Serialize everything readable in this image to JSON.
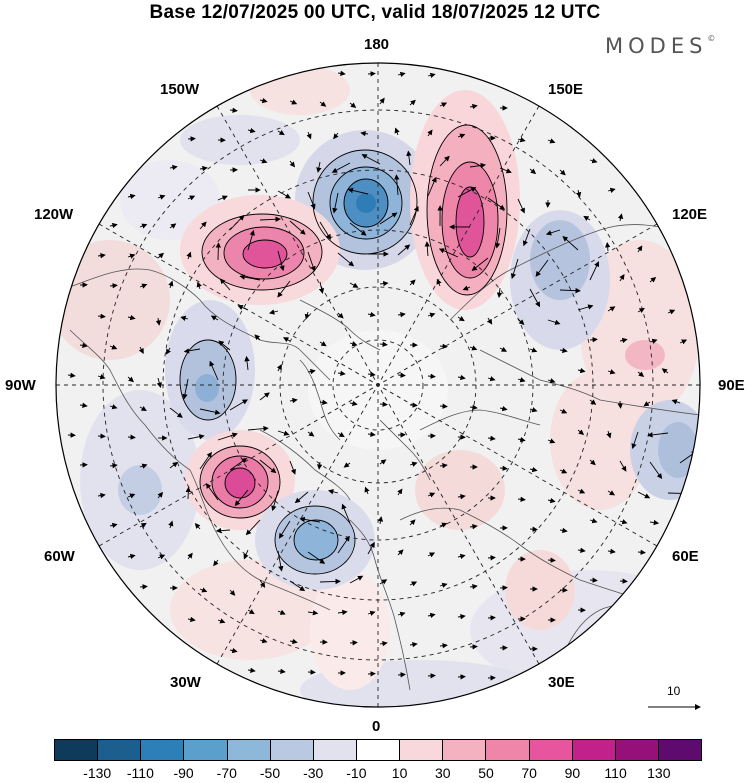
{
  "title": "Base 12/07/2025 00 UTC, valid 18/07/2025 12 UTC",
  "brand": "MODES",
  "brand_mark": "©",
  "longitude_labels": {
    "top": "180",
    "bottom": "0",
    "left": "90W",
    "right": "90E",
    "upper_left_1": "150W",
    "upper_left_2": "120W",
    "upper_right_1": "150E",
    "upper_right_2": "120E",
    "lower_left_1": "60W",
    "lower_left_2": "30W",
    "lower_right_1": "60E",
    "lower_right_2": "30E"
  },
  "reference_vector_label": "10",
  "colorbar": {
    "colors": [
      "#0e3a5c",
      "#1c5f8f",
      "#2d7fb8",
      "#5b9fcc",
      "#8db8da",
      "#bac9e2",
      "#e2e2ef",
      "#ffffff",
      "#f9d8dc",
      "#f4b2c0",
      "#ef86aa",
      "#e6559d",
      "#c2208a",
      "#951079",
      "#5e0a6e"
    ],
    "ticks": [
      "-130",
      "-110",
      "-90",
      "-70",
      "-50",
      "-30",
      "-10",
      "10",
      "30",
      "50",
      "70",
      "90",
      "110",
      "130"
    ]
  }
}
